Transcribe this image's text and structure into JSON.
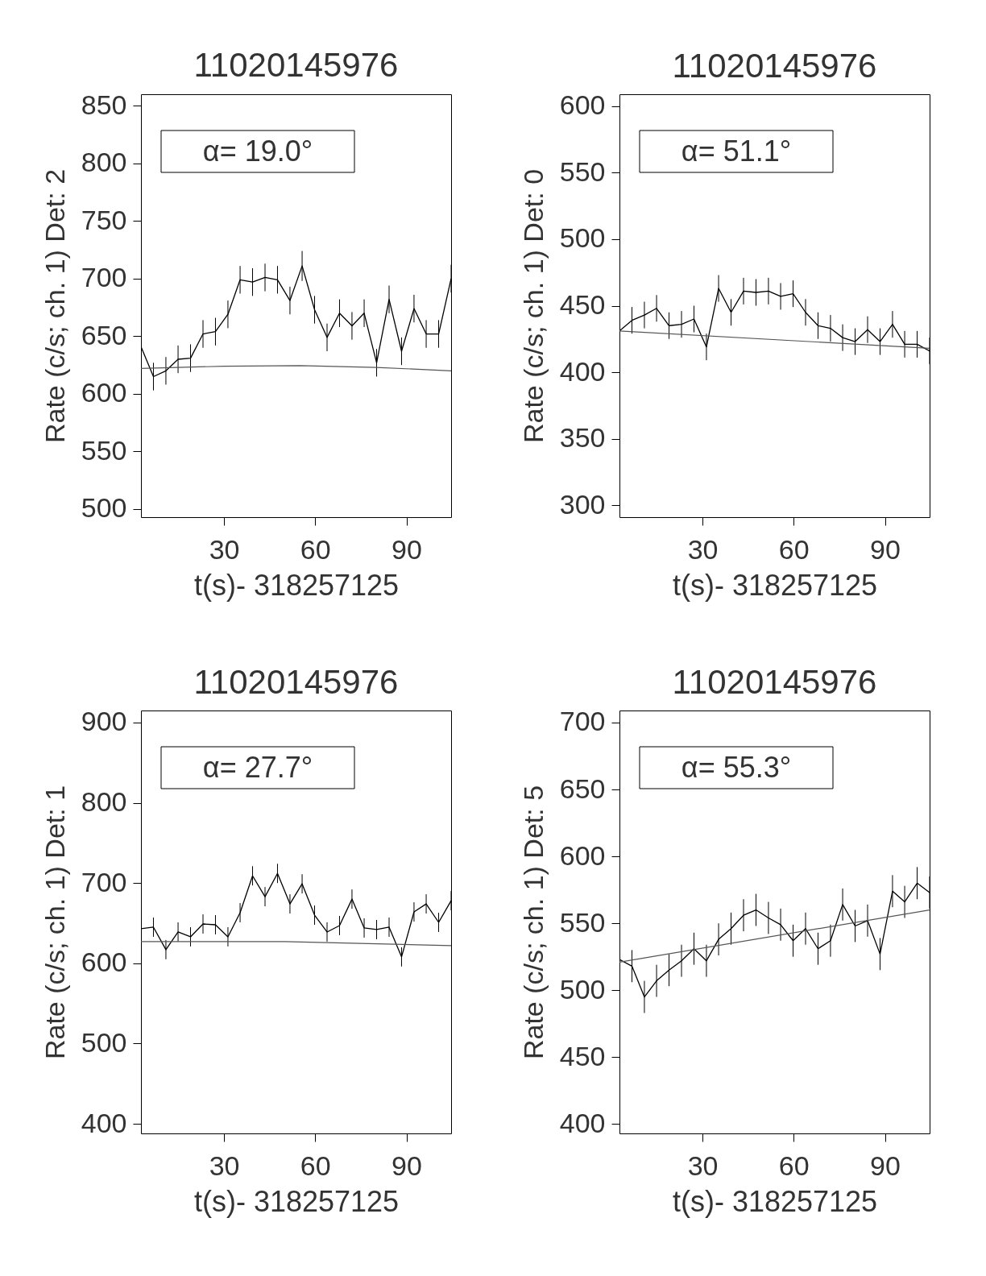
{
  "chart_data": [
    {
      "type": "line",
      "title": "11020145976",
      "xlabel": "t(s)- 318257125",
      "ylabel": "Rate (c/s; ch. 1) Det: 2",
      "annotations": [
        "α= 19.0°"
      ],
      "x": [
        2.7,
        6.8,
        10.9,
        14.9,
        19.0,
        23.1,
        27.2,
        31.3,
        35.3,
        39.4,
        43.5,
        47.6,
        51.7,
        55.7,
        59.8,
        63.9,
        68.0,
        72.1,
        76.1,
        80.2,
        84.3,
        88.4,
        92.5,
        96.5,
        100.6,
        104.7
      ],
      "xlim": [
        2.7,
        104.7
      ],
      "xticks": [
        30,
        60,
        90
      ],
      "ylim": [
        493,
        860
      ],
      "yticks": [
        500,
        550,
        600,
        650,
        700,
        750,
        800,
        850
      ],
      "series": [
        {
          "type": "line",
          "color": "#000000",
          "values": [
            641,
            615,
            620,
            630,
            631,
            652,
            654,
            669,
            699,
            697,
            701,
            699,
            681,
            711,
            673,
            649,
            670,
            659,
            670,
            627,
            682,
            637,
            674,
            652,
            652,
            700
          ],
          "errors": [
            12,
            12,
            12,
            12,
            12,
            12,
            12,
            12,
            12,
            12,
            12,
            12,
            12,
            13,
            12,
            12,
            12,
            12,
            12,
            12,
            12,
            12,
            12,
            12,
            12,
            12
          ]
        },
        {
          "type": "line",
          "color": "#555555",
          "x": [
            2.7,
            30,
            55,
            80,
            104.7
          ],
          "values": [
            622,
            624,
            624.5,
            623,
            620
          ]
        }
      ]
    },
    {
      "type": "line",
      "title": "11020145976",
      "xlabel": "t(s)- 318257125",
      "ylabel": "Rate (c/s; ch. 1) Det: 0",
      "annotations": [
        "α= 51.1°"
      ],
      "x": [
        2.7,
        6.8,
        10.9,
        14.9,
        19.0,
        23.1,
        27.2,
        31.3,
        35.3,
        39.4,
        43.5,
        47.6,
        51.7,
        55.7,
        59.8,
        63.9,
        68.0,
        72.1,
        76.1,
        80.2,
        84.3,
        88.4,
        92.5,
        96.5,
        100.6,
        104.7
      ],
      "xlim": [
        2.7,
        104.7
      ],
      "xticks": [
        30,
        60,
        90
      ],
      "ylim": [
        291,
        609
      ],
      "yticks": [
        300,
        350,
        400,
        450,
        500,
        550,
        600
      ],
      "series": [
        {
          "type": "line",
          "color": "#000000",
          "values": [
            431,
            439,
            443,
            448,
            435,
            436,
            440,
            419,
            463,
            445,
            461,
            460,
            461,
            457,
            459,
            445,
            435,
            433,
            426,
            423,
            432,
            423,
            436,
            421,
            421,
            416
          ],
          "errors": [
            10,
            10,
            10,
            10,
            10,
            10,
            10,
            10,
            10,
            10,
            10,
            10,
            10,
            10,
            10,
            10,
            10,
            10,
            10,
            10,
            10,
            10,
            10,
            10,
            10,
            10
          ]
        },
        {
          "type": "line",
          "color": "#555555",
          "x": [
            2.7,
            104.7
          ],
          "values": [
            431,
            418
          ]
        }
      ]
    },
    {
      "type": "line",
      "title": "11020145976",
      "xlabel": "t(s)- 318257125",
      "ylabel": "Rate (c/s; ch. 1) Det: 1",
      "annotations": [
        "α= 27.7°"
      ],
      "x": [
        2.7,
        6.8,
        10.9,
        14.9,
        19.0,
        23.1,
        27.2,
        31.3,
        35.3,
        39.4,
        43.5,
        47.6,
        51.7,
        55.7,
        59.8,
        63.9,
        68.0,
        72.1,
        76.1,
        80.2,
        84.3,
        88.4,
        92.5,
        96.5,
        100.6,
        104.7
      ],
      "xlim": [
        2.7,
        104.7
      ],
      "xticks": [
        30,
        60,
        90
      ],
      "ylim": [
        388,
        915
      ],
      "yticks": [
        400,
        500,
        600,
        700,
        800,
        900
      ],
      "series": [
        {
          "type": "line",
          "color": "#000000",
          "values": [
            643,
            645,
            617,
            639,
            633,
            649,
            648,
            633,
            663,
            709,
            683,
            712,
            674,
            699,
            660,
            639,
            647,
            680,
            644,
            642,
            645,
            608,
            664,
            674,
            651,
            678
          ],
          "errors": [
            12,
            12,
            12,
            12,
            12,
            12,
            12,
            12,
            12,
            12,
            12,
            12,
            12,
            12,
            12,
            12,
            12,
            12,
            12,
            12,
            12,
            12,
            12,
            12,
            12,
            12
          ]
        },
        {
          "type": "line",
          "color": "#555555",
          "x": [
            2.7,
            50,
            104.7
          ],
          "values": [
            627,
            627,
            622
          ]
        }
      ]
    },
    {
      "type": "line",
      "title": "11020145976",
      "xlabel": "t(s)- 318257125",
      "ylabel": "Rate (c/s; ch. 1) Det: 5",
      "annotations": [
        "α= 55.3°"
      ],
      "x": [
        2.7,
        6.8,
        10.9,
        14.9,
        19.0,
        23.1,
        27.2,
        31.3,
        35.3,
        39.4,
        43.5,
        47.6,
        51.7,
        55.7,
        59.8,
        63.9,
        68.0,
        72.1,
        76.1,
        80.2,
        84.3,
        88.4,
        92.5,
        96.5,
        100.6,
        104.7
      ],
      "xlim": [
        2.7,
        104.7
      ],
      "xticks": [
        30,
        60,
        90
      ],
      "ylim": [
        393,
        709
      ],
      "yticks": [
        400,
        450,
        500,
        550,
        600,
        650,
        700
      ],
      "series": [
        {
          "type": "line",
          "color": "#000000",
          "values": [
            523,
            518,
            495,
            507,
            515,
            522,
            531,
            522,
            538,
            546,
            556,
            560,
            554,
            549,
            537,
            546,
            531,
            537,
            564,
            548,
            552,
            527,
            574,
            566,
            580,
            573
          ],
          "errors": [
            12,
            12,
            12,
            12,
            12,
            12,
            12,
            12,
            12,
            12,
            12,
            12,
            12,
            12,
            12,
            12,
            12,
            12,
            12,
            12,
            12,
            12,
            12,
            12,
            12,
            12
          ]
        },
        {
          "type": "line",
          "color": "#555555",
          "x": [
            2.7,
            104.7
          ],
          "values": [
            521,
            560
          ]
        }
      ]
    }
  ]
}
